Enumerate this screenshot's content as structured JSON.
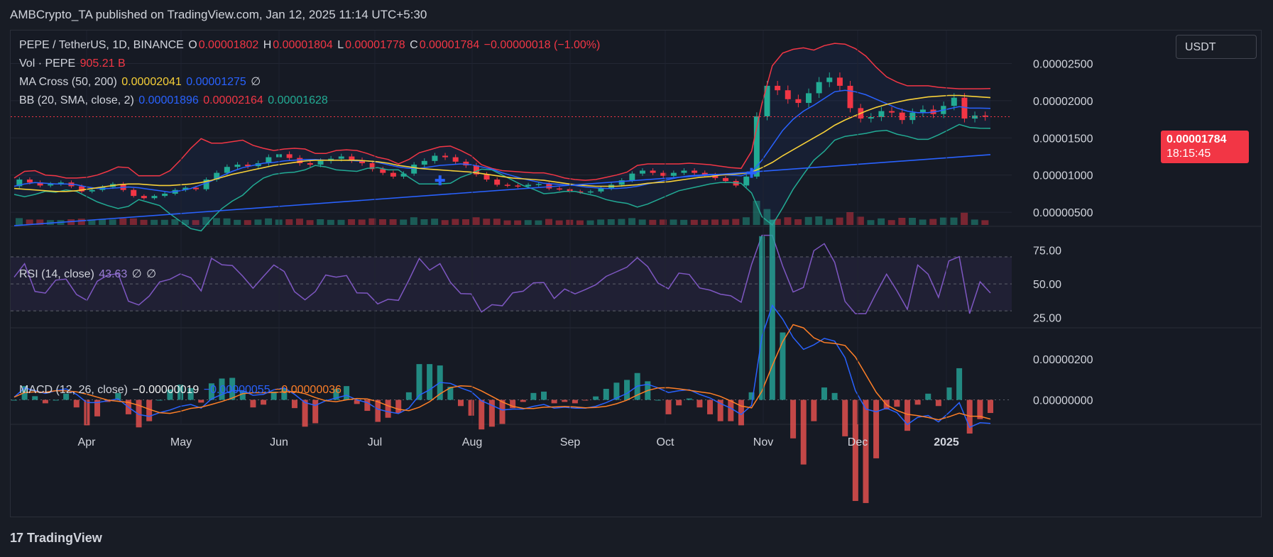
{
  "header": {
    "publisher_line": "AMBCrypto_TA published on TradingView.com, Jan 12, 2025 11:14 UTC+5:30"
  },
  "symbol": {
    "name": "PEPE / TetherUS, 1D, BINANCE",
    "open_label": "O",
    "open": "0.00001802",
    "high_label": "H",
    "high": "0.00001804",
    "low_label": "L",
    "low": "0.00001778",
    "close_label": "C",
    "close": "0.00001784",
    "change": "−0.00000018 (−1.00%)"
  },
  "volume": {
    "label": "Vol · PEPE",
    "value": "905.21 B"
  },
  "ma_cross": {
    "label": "MA Cross (50, 200)",
    "ma50": "0.00002041",
    "ma200": "0.00001275",
    "eye": "∅"
  },
  "bb": {
    "label": "BB (20, SMA, close, 2)",
    "basis": "0.00001896",
    "upper": "0.00002164",
    "lower": "0.00001628"
  },
  "rsi": {
    "label": "RSI (14, close)",
    "value": "43.63",
    "e1": "∅",
    "e2": "∅"
  },
  "macd": {
    "label": "MACD (12, 26, close)",
    "hist": "−0.00000019",
    "macd": "−0.00000055",
    "signal": "−0.00000036"
  },
  "currency_button": "USDT",
  "last_price_badge": {
    "price": "0.00001784",
    "countdown": "18:15:45"
  },
  "branding": {
    "logo_text": "TradingView",
    "logo_mark": "17"
  },
  "colors": {
    "up": "#22ab94",
    "down": "#f23645",
    "bb_upper": "#f23645",
    "bb_basis": "#2962ff",
    "bb_lower": "#22ab94",
    "ma50": "#f7d038",
    "ma200": "#2962ff",
    "rsi": "#7e57c2",
    "macd": "#2962ff",
    "signal": "#ff7f27"
  },
  "chart_data": {
    "type": "line",
    "x_tick_labels": [
      "Apr",
      "May",
      "Jun",
      "Jul",
      "Aug",
      "Sep",
      "Oct",
      "Nov",
      "Dec",
      "2025"
    ],
    "price_axis": {
      "ticks": [
        2.5e-05,
        2e-05,
        1.5e-05,
        1e-05,
        5e-06
      ],
      "tick_labels": [
        "0.00002500",
        "0.00002000",
        "0.00001500",
        "0.00001000",
        "0.00000500"
      ],
      "range": [
        3.3e-06,
        2.8e-05
      ]
    },
    "rsi_axis": {
      "ticks": [
        75,
        50,
        25
      ],
      "tick_labels": [
        "75.00",
        "50.00",
        "25.00"
      ],
      "range": [
        18,
        90
      ],
      "band": [
        30,
        70
      ]
    },
    "macd_axis": {
      "ticks": [
        2e-06,
        0
      ],
      "tick_labels": [
        "0.00000200",
        "0.00000000"
      ],
      "range": [
        -1.2e-06,
        3.5e-06
      ]
    },
    "price_close": [
      8.5,
      9.4,
      9.0,
      8.6,
      8.8,
      9.0,
      8.5,
      7.8,
      8.0,
      8.4,
      8.8,
      8.0,
      7.2,
      6.9,
      7.2,
      7.5,
      8.0,
      8.3,
      8.1,
      9.4,
      10.3,
      11.1,
      11.4,
      11.2,
      11.6,
      12.4,
      12.8,
      12.3,
      11.6,
      11.4,
      11.9,
      12.2,
      12.5,
      12.0,
      11.6,
      10.8,
      10.3,
      9.8,
      10.2,
      11.4,
      11.9,
      12.6,
      12.4,
      11.8,
      11.3,
      10.1,
      9.4,
      8.7,
      8.6,
      8.5,
      8.7,
      8.8,
      8.2,
      8.1,
      7.8,
      7.7,
      7.8,
      8.2,
      8.7,
      9.3,
      10.2,
      10.6,
      10.3,
      9.9,
      10.3,
      10.6,
      10.3,
      10.0,
      9.6,
      9.2,
      8.6,
      9.8,
      17.9,
      22.0,
      21.4,
      20.2,
      19.7,
      21.0,
      22.5,
      23.1,
      22.0,
      19.0,
      17.6,
      17.8,
      18.6,
      18.4,
      17.4,
      18.4,
      18.8,
      18.2,
      19.3,
      20.4,
      17.6,
      18.0,
      17.84
    ],
    "bb_upper": [
      9.6,
      10.5,
      10.6,
      10.0,
      9.9,
      9.6,
      9.6,
      9.7,
      10.0,
      10.5,
      11.1,
      11.0,
      9.9,
      9.9,
      9.9,
      10.6,
      12.0,
      13.6,
      14.9,
      14.3,
      14.3,
      14.5,
      14.7,
      14.0,
      13.6,
      13.3,
      13.5,
      13.6,
      13.5,
      12.9,
      12.9,
      13.3,
      13.4,
      13.3,
      12.9,
      12.4,
      12.1,
      11.5,
      12.1,
      13.0,
      13.4,
      13.8,
      13.9,
      13.3,
      12.6,
      11.4,
      10.9,
      10.6,
      10.5,
      10.4,
      10.3,
      10.3,
      10.0,
      9.6,
      9.4,
      9.3,
      9.4,
      9.7,
      10.0,
      10.4,
      11.3,
      11.5,
      11.5,
      11.5,
      11.5,
      11.6,
      11.5,
      11.4,
      11.2,
      11.0,
      10.9,
      13.2,
      19.6,
      24.7,
      26.4,
      26.9,
      27.1,
      26.8,
      27.4,
      27.7,
      27.6,
      27.0,
      26.0,
      24.5,
      23.2,
      22.5,
      22.0,
      22.0,
      22.0,
      21.8,
      21.7,
      21.6,
      21.6,
      21.6,
      21.64
    ],
    "bb_basis": [
      8.5,
      8.8,
      9.0,
      8.9,
      8.8,
      8.8,
      8.7,
      8.4,
      8.2,
      8.2,
      8.3,
      8.4,
      8.3,
      8.1,
      7.9,
      7.7,
      7.9,
      8.2,
      8.7,
      9.2,
      9.9,
      10.5,
      11.0,
      11.3,
      11.6,
      11.7,
      11.9,
      12.0,
      12.1,
      12.1,
      12.0,
      12.0,
      12.0,
      11.9,
      11.9,
      11.7,
      11.4,
      11.1,
      10.9,
      10.9,
      11.1,
      11.3,
      11.4,
      11.5,
      11.4,
      11.1,
      10.8,
      10.3,
      9.9,
      9.5,
      9.2,
      8.9,
      8.8,
      8.7,
      8.6,
      8.4,
      8.3,
      8.2,
      8.2,
      8.3,
      8.5,
      8.8,
      9.1,
      9.4,
      9.7,
      9.9,
      10.0,
      10.1,
      10.1,
      10.0,
      9.9,
      10.4,
      12.0,
      14.0,
      16.0,
      17.5,
      18.6,
      19.4,
      20.3,
      21.2,
      21.4,
      21.2,
      20.8,
      20.2,
      19.6,
      19.0,
      18.6,
      18.4,
      18.4,
      18.6,
      18.9,
      19.2,
      19.0,
      19.0,
      18.96
    ],
    "bb_lower": [
      7.4,
      7.1,
      7.4,
      7.8,
      7.7,
      8.0,
      7.8,
      7.1,
      6.4,
      5.9,
      5.5,
      5.8,
      6.7,
      6.3,
      5.9,
      4.8,
      3.8,
      2.8,
      2.5,
      4.1,
      5.5,
      6.5,
      7.3,
      8.6,
      9.6,
      10.1,
      10.3,
      10.4,
      10.7,
      11.3,
      11.1,
      10.7,
      10.6,
      10.5,
      10.9,
      11.0,
      10.7,
      10.7,
      9.7,
      8.8,
      8.8,
      8.8,
      8.9,
      9.7,
      10.2,
      10.8,
      10.7,
      10.0,
      9.3,
      8.6,
      8.1,
      7.5,
      7.6,
      7.8,
      7.8,
      7.5,
      7.2,
      6.7,
      6.4,
      6.2,
      5.7,
      6.1,
      6.7,
      7.3,
      7.9,
      8.2,
      8.5,
      8.8,
      9.0,
      9.0,
      8.9,
      7.6,
      4.4,
      3.3,
      5.6,
      8.1,
      10.1,
      12.0,
      13.2,
      14.7,
      15.2,
      15.4,
      15.6,
      15.9,
      16.0,
      15.5,
      15.2,
      14.8,
      14.8,
      15.4,
      16.1,
      16.8,
      16.4,
      16.3,
      16.28
    ],
    "ma50": [
      8.2,
      8.1,
      8.0,
      7.9,
      7.8,
      7.8,
      7.9,
      8.1,
      8.3,
      8.5,
      8.7,
      8.8,
      8.8,
      8.7,
      8.6,
      8.6,
      8.7,
      8.8,
      9.0,
      9.3,
      9.7,
      10.1,
      10.4,
      10.7,
      11.0,
      11.3,
      11.5,
      11.7,
      11.9,
      12.0,
      12.0,
      12.0,
      12.0,
      12.0,
      11.9,
      11.8,
      11.6,
      11.3,
      11.1,
      10.9,
      10.8,
      10.7,
      10.6,
      10.5,
      10.4,
      10.2,
      10.0,
      9.8,
      9.6,
      9.5,
      9.4,
      9.3,
      9.1,
      8.9,
      8.7,
      8.6,
      8.5,
      8.5,
      8.5,
      8.6,
      8.7,
      8.9,
      9.0,
      9.1,
      9.3,
      9.5,
      9.7,
      9.8,
      10.0,
      10.1,
      10.2,
      10.4,
      11.0,
      11.7,
      12.6,
      13.4,
      14.2,
      15.0,
      15.8,
      16.7,
      17.4,
      18.0,
      18.6,
      19.1,
      19.5,
      19.8,
      20.1,
      20.3,
      20.5,
      20.6,
      20.7,
      20.7,
      20.6,
      20.5,
      20.41
    ]
  }
}
